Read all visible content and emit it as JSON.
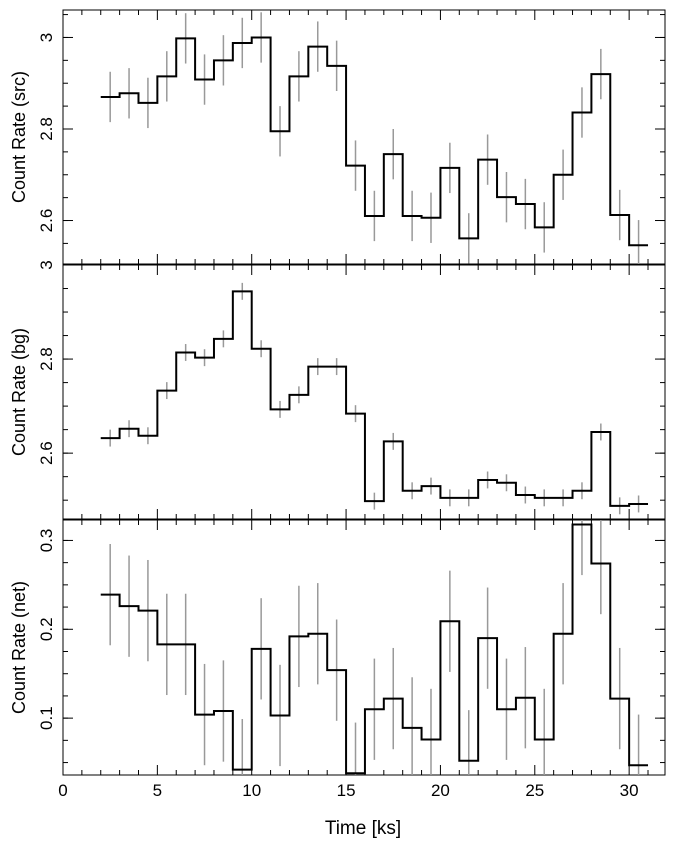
{
  "chart_data": {
    "type": "line",
    "xlabel": "Time [ks]",
    "xlim": [
      0,
      31.9
    ],
    "xticks": [
      0,
      5,
      10,
      15,
      20,
      25,
      30
    ],
    "bin_edges": [
      2,
      3,
      4,
      5,
      6,
      7,
      8,
      9,
      10,
      11,
      12,
      13,
      14,
      15,
      16,
      17,
      18,
      19,
      20,
      21,
      22,
      23,
      24,
      25,
      26,
      27,
      28,
      29,
      30,
      31
    ],
    "bin_centers": [
      2.5,
      3.5,
      4.5,
      5.5,
      6.5,
      7.5,
      8.5,
      9.5,
      10.5,
      11.5,
      12.5,
      13.5,
      14.5,
      15.5,
      16.5,
      17.5,
      18.5,
      19.5,
      20.5,
      21.5,
      22.5,
      23.5,
      24.5,
      25.5,
      26.5,
      27.5,
      28.5,
      29.5,
      30.5
    ],
    "panels": [
      {
        "ylabel": "Count Rate (src)",
        "ylim": [
          2.505,
          3.06
        ],
        "yticks": [
          2.6,
          2.8,
          3
        ],
        "ytick_labels": [
          "2.6",
          "2.8",
          "3"
        ],
        "values": [
          2.87,
          2.878,
          2.857,
          2.915,
          2.998,
          2.908,
          2.95,
          2.988,
          3.0,
          2.795,
          2.915,
          2.98,
          2.938,
          2.72,
          2.61,
          2.745,
          2.61,
          2.606,
          2.715,
          2.561,
          2.733,
          2.651,
          2.636,
          2.585,
          2.7,
          2.836,
          2.92,
          2.612,
          2.546
        ],
        "errors": [
          0.055,
          0.055,
          0.055,
          0.055,
          0.055,
          0.055,
          0.055,
          0.055,
          0.055,
          0.055,
          0.055,
          0.055,
          0.055,
          0.055,
          0.055,
          0.055,
          0.055,
          0.055,
          0.055,
          0.055,
          0.055,
          0.055,
          0.055,
          0.055,
          0.055,
          0.055,
          0.055,
          0.055,
          0.055
        ]
      },
      {
        "ylabel": "Count Rate (bg)",
        "ylim": [
          2.46,
          3.0
        ],
        "yticks": [
          2.6,
          2.8,
          3
        ],
        "ytick_labels": [
          "2.6",
          "2.8",
          "3"
        ],
        "values": [
          2.632,
          2.652,
          2.637,
          2.733,
          2.814,
          2.803,
          2.843,
          2.944,
          2.822,
          2.693,
          2.724,
          2.784,
          2.784,
          2.684,
          2.498,
          2.625,
          2.52,
          2.53,
          2.505,
          2.505,
          2.543,
          2.537,
          2.511,
          2.505,
          2.505,
          2.52,
          2.645,
          2.488,
          2.492
        ],
        "errors": [
          0.018,
          0.018,
          0.018,
          0.018,
          0.018,
          0.018,
          0.018,
          0.018,
          0.018,
          0.018,
          0.018,
          0.018,
          0.018,
          0.018,
          0.018,
          0.018,
          0.018,
          0.018,
          0.018,
          0.018,
          0.018,
          0.018,
          0.018,
          0.018,
          0.018,
          0.018,
          0.018,
          0.018,
          0.018
        ]
      },
      {
        "ylabel": "Count Rate (net)",
        "ylim": [
          0.036,
          0.323
        ],
        "yticks": [
          0.1,
          0.2,
          0.3
        ],
        "ytick_labels": [
          "0.1",
          "0.2",
          "0.3"
        ],
        "values": [
          0.239,
          0.226,
          0.221,
          0.183,
          0.183,
          0.104,
          0.108,
          0.042,
          0.178,
          0.103,
          0.192,
          0.195,
          0.154,
          0.038,
          0.11,
          0.122,
          0.089,
          0.076,
          0.209,
          0.052,
          0.19,
          0.11,
          0.123,
          0.076,
          0.195,
          0.318,
          0.274,
          0.122,
          0.047
        ],
        "errors": [
          0.057,
          0.057,
          0.057,
          0.057,
          0.057,
          0.057,
          0.057,
          0.057,
          0.057,
          0.057,
          0.057,
          0.057,
          0.057,
          0.057,
          0.057,
          0.057,
          0.057,
          0.057,
          0.057,
          0.057,
          0.057,
          0.057,
          0.057,
          0.057,
          0.057,
          0.057,
          0.057,
          0.057,
          0.057
        ]
      }
    ],
    "line_color": "#000000",
    "error_bar_color": "#999999",
    "grid": false
  }
}
